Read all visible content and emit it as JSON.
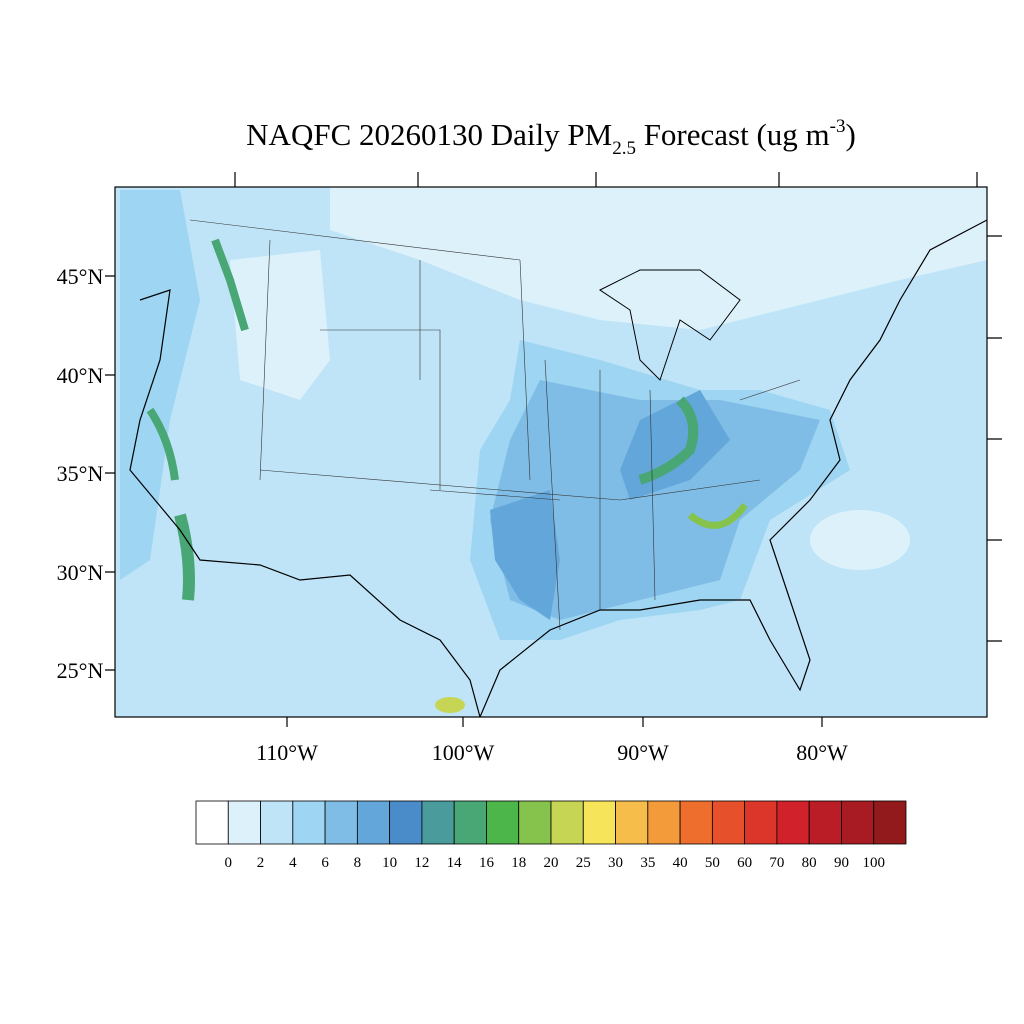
{
  "title": {
    "main": "NAQFC 20260130 Daily PM",
    "subscript": "2.5",
    "middle": " Forecast (ug m",
    "superscript": "-3",
    "end": ")"
  },
  "lat_labels": [
    "45°N",
    "40°N",
    "35°N",
    "30°N",
    "25°N"
  ],
  "lon_labels": [
    "110°W",
    "100°W",
    "90°W",
    "80°W"
  ],
  "colorbar": {
    "levels": [
      0,
      2,
      4,
      6,
      8,
      10,
      12,
      14,
      16,
      18,
      20,
      25,
      30,
      35,
      40,
      50,
      60,
      70,
      80,
      90,
      100
    ],
    "colors": [
      "#ffffff",
      "#ddf1fb",
      "#bfe4f7",
      "#9dd5f2",
      "#7fbde6",
      "#63a6da",
      "#4a8bc9",
      "#4a9b9c",
      "#49a675",
      "#4cb64a",
      "#86c34c",
      "#c6d654",
      "#f6e55a",
      "#f7bd4a",
      "#f39a3b",
      "#ee6f2d",
      "#e6502b",
      "#dc3529",
      "#d1222b",
      "#bb1d26",
      "#a91b22",
      "#921a1c"
    ]
  }
}
